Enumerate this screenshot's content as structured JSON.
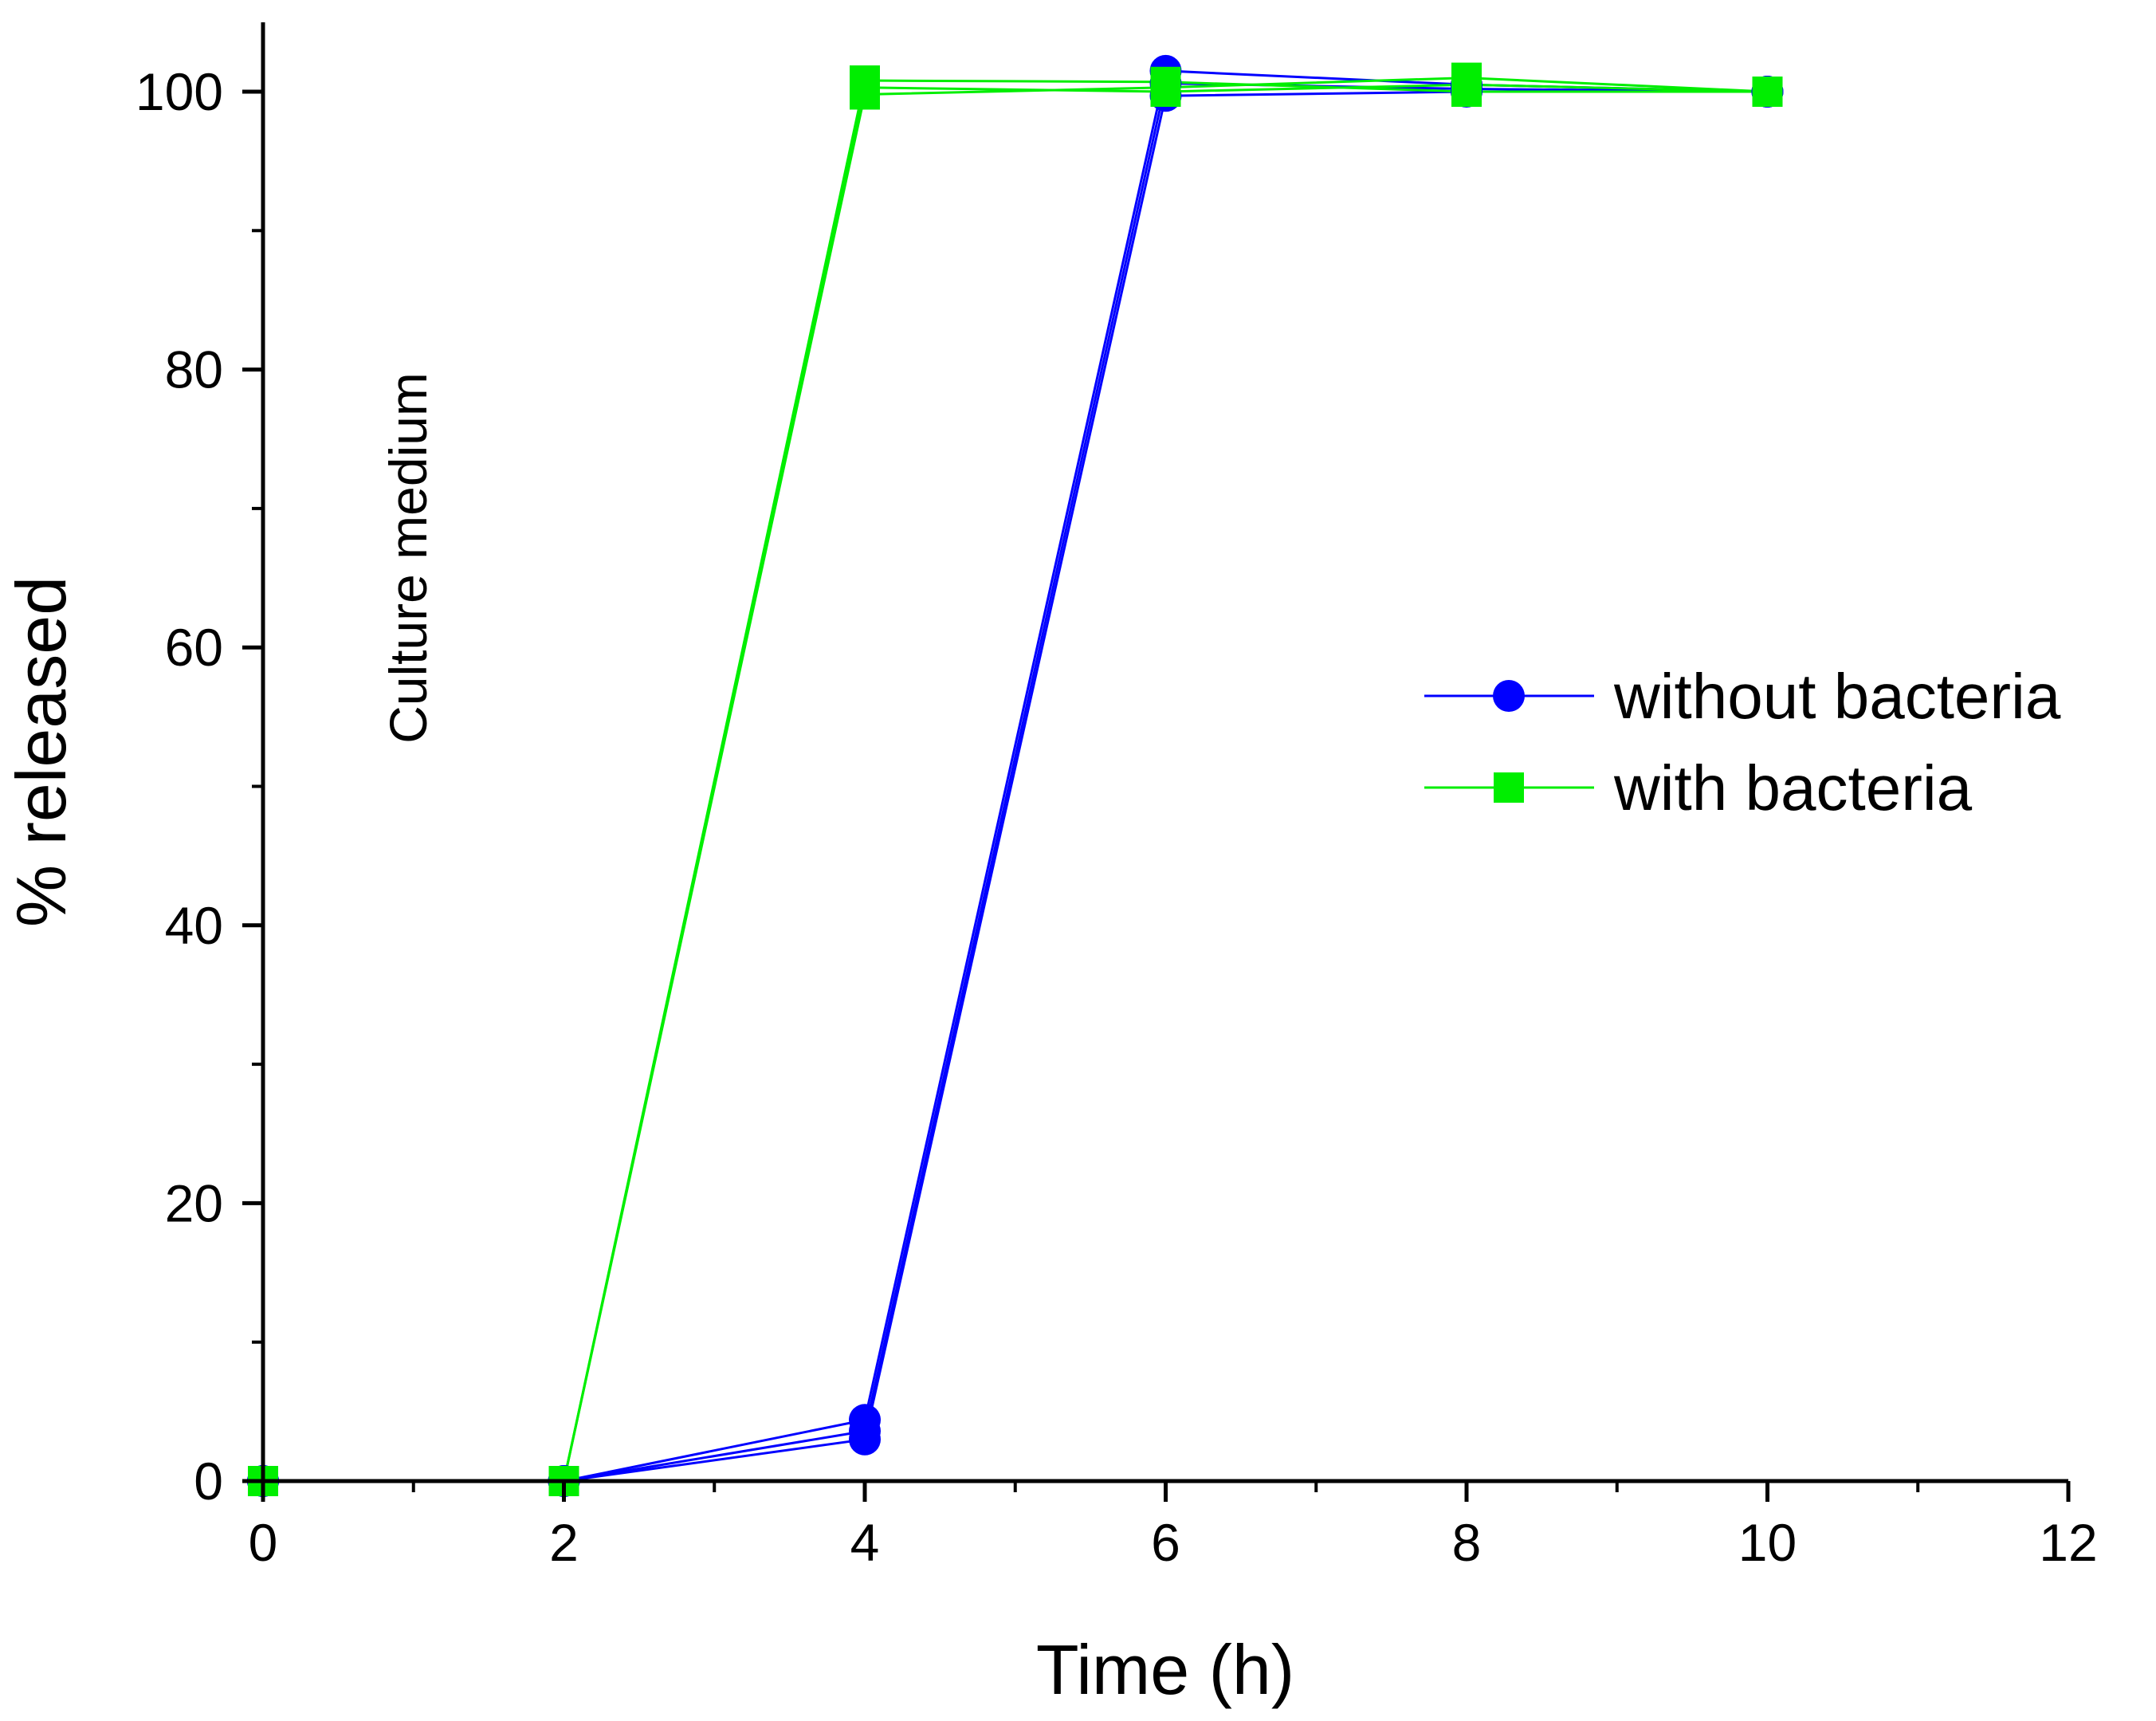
{
  "chart_data": {
    "type": "line",
    "title": "",
    "xlabel": "Time (h)",
    "ylabel": "% released",
    "xlim": [
      0,
      12
    ],
    "ylim": [
      0,
      105
    ],
    "xticks": [
      0,
      2,
      4,
      6,
      8,
      10,
      12
    ],
    "yticks": [
      0,
      20,
      40,
      60,
      80,
      100
    ],
    "xtick_labels": [
      "0",
      "2",
      "4",
      "6",
      "8",
      "10",
      "12"
    ],
    "ytick_labels": [
      "0",
      "20",
      "40",
      "60",
      "80",
      "100"
    ],
    "grid": false,
    "legend_position": "center-right",
    "annotation": "Culture medium",
    "series": [
      {
        "name": "without bacteria",
        "color": "#0000ff",
        "marker": "circle",
        "x": [
          0,
          2,
          4,
          6,
          8,
          10
        ],
        "values": [
          0,
          0,
          3.0,
          99.7,
          100.0,
          100.0
        ]
      },
      {
        "name": "without bacteria",
        "color": "#0000ff",
        "marker": "circle",
        "x": [
          0,
          2,
          4,
          6,
          8,
          10
        ],
        "values": [
          0,
          0,
          4.4,
          101.5,
          100.5,
          100.0
        ]
      },
      {
        "name": "without bacteria",
        "color": "#0000ff",
        "marker": "circle",
        "x": [
          0,
          2,
          4,
          6,
          8,
          10
        ],
        "values": [
          0,
          0,
          3.6,
          100.6,
          100.2,
          100.0
        ]
      },
      {
        "name": "with bacteria",
        "color": "#00ee00",
        "marker": "square",
        "x": [
          0,
          2,
          4,
          6,
          8,
          10
        ],
        "values": [
          0,
          0,
          99.8,
          100.3,
          101.0,
          100.0
        ]
      },
      {
        "name": "with bacteria",
        "color": "#00ee00",
        "marker": "square",
        "x": [
          0,
          2,
          4,
          6,
          8,
          10
        ],
        "values": [
          0,
          0,
          100.8,
          100.7,
          100.0,
          100.0
        ]
      },
      {
        "name": "with bacteria",
        "color": "#00ee00",
        "marker": "square",
        "x": [
          0,
          2,
          4,
          6,
          8,
          10
        ],
        "values": [
          0,
          0,
          100.3,
          100.0,
          100.5,
          100.0
        ]
      }
    ],
    "legend": [
      {
        "label": "without bacteria",
        "color": "#0000ff",
        "marker": "circle"
      },
      {
        "label": "with bacteria",
        "color": "#00ee00",
        "marker": "square"
      }
    ]
  }
}
